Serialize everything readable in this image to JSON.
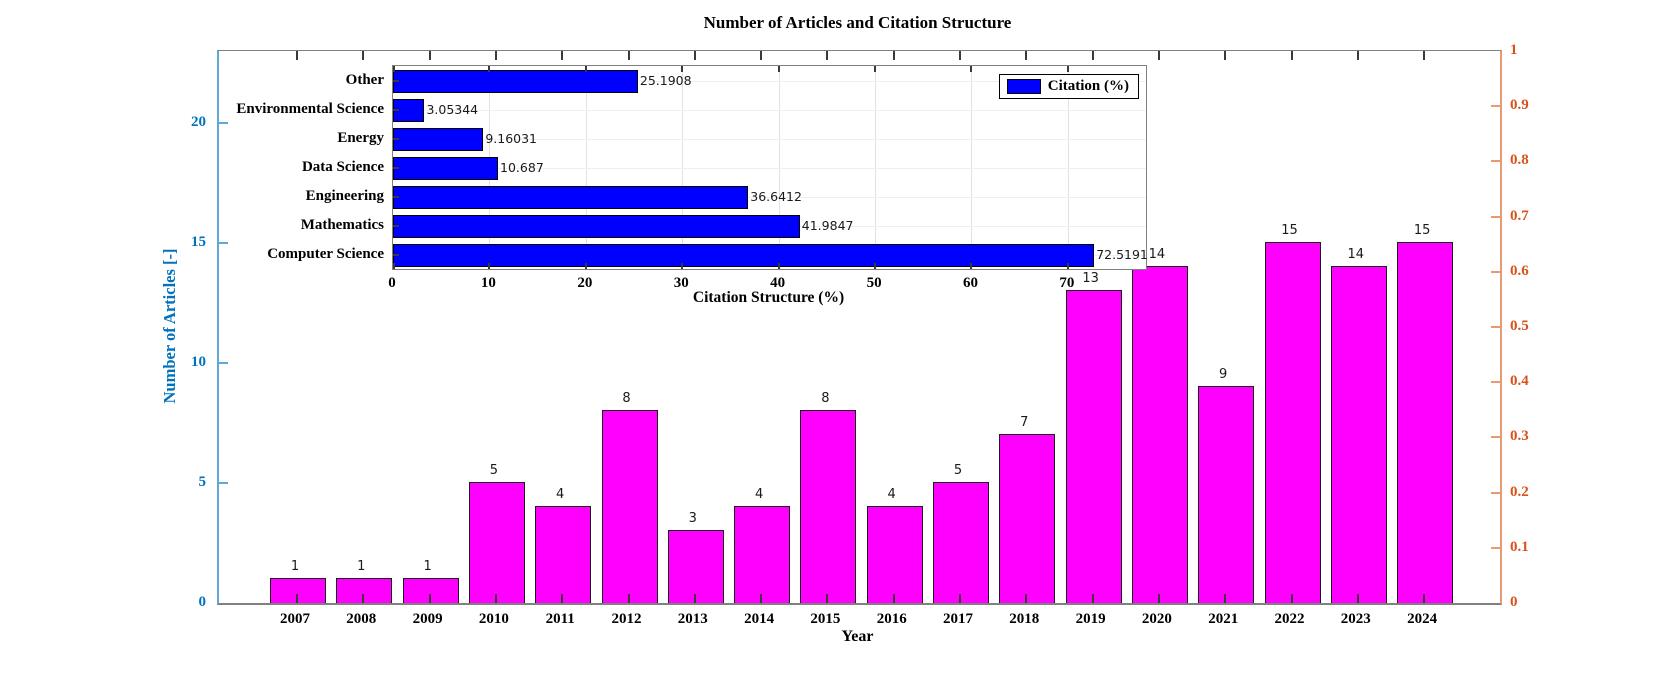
{
  "colors": {
    "article_bar": "#FF00FF",
    "article_bar_edge": "#1A1A1A",
    "citation_bar": "#0000FF",
    "citation_bar_edge": "#000000",
    "left_axis_label": "#0072BD",
    "left_axis_line": "#5FA8D8",
    "right_axis_label": "#D95319",
    "right_axis_line": "#E89B72",
    "axis_box": "#808080",
    "tick_dark": "#3A3A3A",
    "grid": "#E2E2E2",
    "grid_minor": "#EFEFEF",
    "text": "#000000",
    "value_label": "#1A1A1A"
  },
  "chart_data": [
    {
      "type": "bar",
      "name": "articles-per-year",
      "title": "Number of Articles and Citation Structure",
      "xlabel": "Year",
      "ylabel": "Number of Articles [-]",
      "categories": [
        "2007",
        "2008",
        "2009",
        "2010",
        "2011",
        "2012",
        "2013",
        "2014",
        "2015",
        "2016",
        "2017",
        "2018",
        "2019",
        "2020",
        "2021",
        "2022",
        "2023",
        "2024"
      ],
      "values": [
        1,
        1,
        1,
        5,
        4,
        8,
        3,
        4,
        8,
        4,
        5,
        7,
        13,
        14,
        9,
        15,
        14,
        15
      ],
      "bar_labels": [
        "1",
        "1",
        "1",
        "5",
        "4",
        "8",
        "3",
        "4",
        "8",
        "4",
        "5",
        "7",
        "13",
        "14",
        "9",
        "15",
        "14",
        "15"
      ],
      "ylim": [
        0,
        23
      ],
      "yticks": {
        "values": [
          0,
          5,
          10,
          15,
          20
        ],
        "labels": [
          "0",
          "5",
          "10",
          "15",
          "20"
        ]
      },
      "right_axis": {
        "lim": [
          0,
          1
        ],
        "ticks": [
          0,
          0.1,
          0.2,
          0.3,
          0.4,
          0.5,
          0.6,
          0.7,
          0.8,
          0.9,
          1
        ],
        "labels": [
          "0",
          "0.1",
          "0.2",
          "0.3",
          "0.4",
          "0.5",
          "0.6",
          "0.7",
          "0.8",
          "0.9",
          "1"
        ]
      },
      "grid": false,
      "bar_color": "#FF00FF",
      "legend_position": "none"
    },
    {
      "type": "bar",
      "orientation": "horizontal",
      "name": "citation-structure-inset",
      "xlabel": "Citation Structure (%)",
      "categories": [
        "Other",
        "Environmental Science",
        "Energy",
        "Data Science",
        "Engineering",
        "Mathematics",
        "Computer Science"
      ],
      "values": [
        25.1908,
        3.05344,
        9.16031,
        10.687,
        36.6412,
        41.9847,
        72.5191
      ],
      "bar_labels": [
        "25.1908",
        "3.05344",
        "9.16031",
        "10.687",
        "36.6412",
        "41.9847",
        "72.5191"
      ],
      "xlim": [
        0,
        78.1
      ],
      "xticks": {
        "values": [
          0,
          10,
          20,
          30,
          40,
          50,
          60,
          70
        ],
        "labels": [
          "0",
          "10",
          "20",
          "30",
          "40",
          "50",
          "60",
          "70"
        ]
      },
      "legend": {
        "entries": [
          "Citation (%)"
        ],
        "position": "top-right"
      },
      "grid": true,
      "bar_color": "#0000FF"
    }
  ]
}
